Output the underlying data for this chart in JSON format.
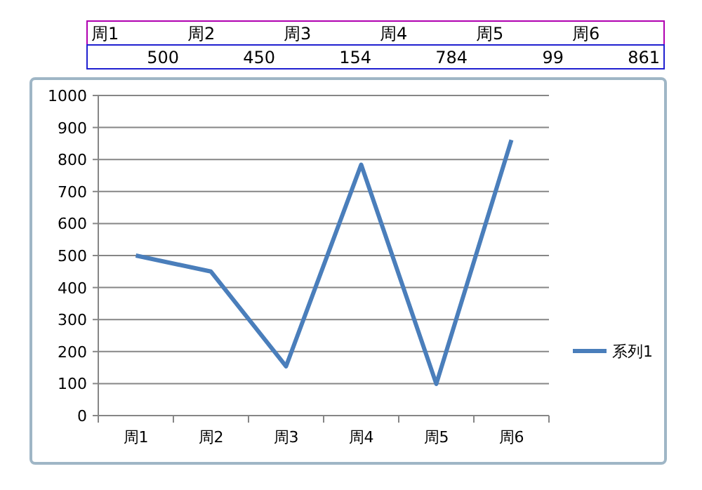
{
  "chart_data": {
    "type": "line",
    "categories": [
      "周1",
      "周2",
      "周3",
      "周4",
      "周5",
      "周6"
    ],
    "series": [
      {
        "name": "系列1",
        "color": "#4a7ebb",
        "values": [
          500,
          450,
          154,
          784,
          99,
          861
        ]
      }
    ],
    "ylim": [
      0,
      1000
    ],
    "yticks": [
      0,
      100,
      200,
      300,
      400,
      500,
      600,
      700,
      800,
      900,
      1000
    ],
    "grid": "y",
    "legend": "right",
    "line_style": "solid",
    "annotations": [
      "500",
      "450",
      "154",
      "784",
      "99",
      "861"
    ]
  }
}
